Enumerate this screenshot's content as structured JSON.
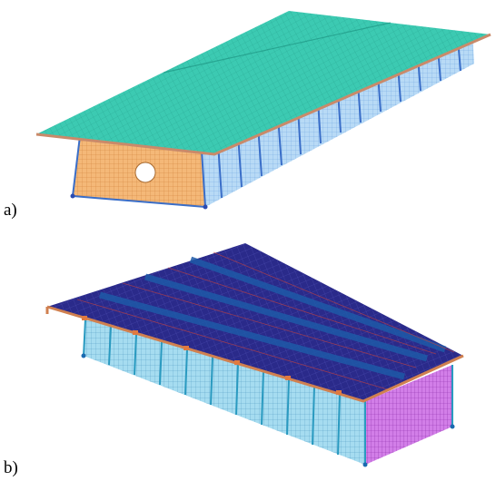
{
  "figure": {
    "panel_a": {
      "label": "a)",
      "colors": {
        "roof": "#2cc2a8",
        "roof_edge": "#c98a6a",
        "walls": "#9cc8f0",
        "gable": "#f0a050",
        "frames": "#4a7ad0"
      }
    },
    "panel_b": {
      "label": "b)",
      "colors": {
        "roof": "#2a2a8a",
        "roof_strips": "#1e5aa8",
        "roof_edge": "#d08050",
        "walls": "#7ec8e8",
        "gable": "#c060d8",
        "frames": "#3070c0"
      }
    }
  }
}
